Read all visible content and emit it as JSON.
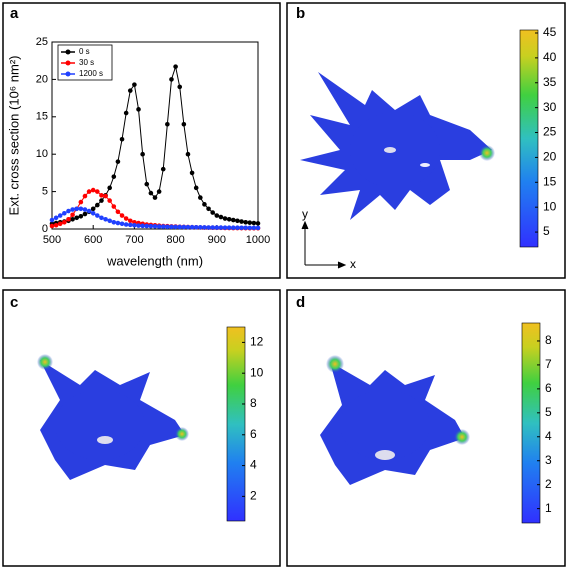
{
  "chart_data": [
    {
      "type": "line",
      "label": "a",
      "xlabel": "wavelength (nm)",
      "ylabel": "Ext. cross section (10⁶ nm²)",
      "x": [
        500,
        510,
        520,
        530,
        540,
        550,
        560,
        570,
        580,
        590,
        600,
        610,
        620,
        630,
        640,
        650,
        660,
        670,
        680,
        690,
        700,
        710,
        720,
        730,
        740,
        750,
        760,
        770,
        780,
        790,
        800,
        810,
        820,
        830,
        840,
        850,
        860,
        870,
        880,
        890,
        900,
        910,
        920,
        930,
        940,
        950,
        960,
        970,
        980,
        990,
        1000
      ],
      "series": [
        {
          "name": "0 s",
          "color": "#000000",
          "values": [
            0.7,
            0.8,
            0.9,
            1.0,
            1.1,
            1.3,
            1.5,
            1.7,
            2.0,
            2.3,
            2.7,
            3.2,
            3.8,
            4.5,
            5.5,
            7,
            9,
            12,
            15.5,
            18.5,
            19.3,
            16,
            10,
            6,
            4.8,
            4.2,
            5,
            8,
            14,
            20,
            21.7,
            19,
            14,
            10,
            7.5,
            5.5,
            4.2,
            3.3,
            2.7,
            2.2,
            1.8,
            1.6,
            1.4,
            1.3,
            1.2,
            1.1,
            1.0,
            0.9,
            0.85,
            0.8,
            0.75
          ]
        },
        {
          "name": "30 s",
          "color": "#ff0000",
          "values": [
            0.4,
            0.5,
            0.7,
            0.9,
            1.3,
            1.9,
            2.7,
            3.6,
            4.4,
            5.0,
            5.2,
            5.0,
            4.5,
            4.4,
            3.8,
            3.0,
            2.3,
            1.8,
            1.4,
            1.1,
            0.9,
            0.8,
            0.7,
            0.6,
            0.55,
            0.5,
            0.45,
            0.4,
            0.38,
            0.35,
            0.33,
            0.3,
            0.28,
            0.26,
            0.24,
            0.22,
            0.2,
            0.19,
            0.18,
            0.17,
            0.16,
            0.15,
            0.14,
            0.13,
            0.12,
            0.12,
            0.11,
            0.11,
            0.1,
            0.1,
            0.1
          ]
        },
        {
          "name": "1200 s",
          "color": "#2040ff",
          "values": [
            1.2,
            1.5,
            1.8,
            2.1,
            2.4,
            2.6,
            2.7,
            2.7,
            2.6,
            2.4,
            2.1,
            1.8,
            1.5,
            1.3,
            1.1,
            0.9,
            0.8,
            0.7,
            0.6,
            0.55,
            0.5,
            0.45,
            0.42,
            0.4,
            0.38,
            0.36,
            0.34,
            0.32,
            0.3,
            0.29,
            0.28,
            0.27,
            0.26,
            0.25,
            0.24,
            0.23,
            0.22,
            0.21,
            0.2,
            0.2,
            0.19,
            0.19,
            0.18,
            0.18,
            0.17,
            0.17,
            0.16,
            0.16,
            0.15,
            0.15,
            0.15
          ]
        }
      ],
      "xlim": [
        500,
        1000
      ],
      "xticks": [
        500,
        600,
        700,
        800,
        900,
        1000
      ],
      "ylim": [
        0,
        25
      ],
      "yticks": [
        0,
        5,
        10,
        15,
        20,
        25
      ],
      "legend": "upper-left"
    },
    {
      "type": "colormap",
      "label": "b",
      "xlabel": "x",
      "ylabel": "y",
      "clim": [
        2,
        45.6
      ],
      "cticks": [
        5,
        10,
        15,
        20,
        25,
        30,
        35,
        40,
        45
      ]
    },
    {
      "type": "colormap",
      "label": "c",
      "clim": [
        0.4,
        13
      ],
      "cticks": [
        2,
        4,
        6,
        8,
        10,
        12
      ]
    },
    {
      "type": "colormap",
      "label": "d",
      "clim": [
        0.4,
        8.75
      ],
      "cticks": [
        1,
        2,
        3,
        4,
        5,
        6,
        7,
        8
      ]
    }
  ]
}
